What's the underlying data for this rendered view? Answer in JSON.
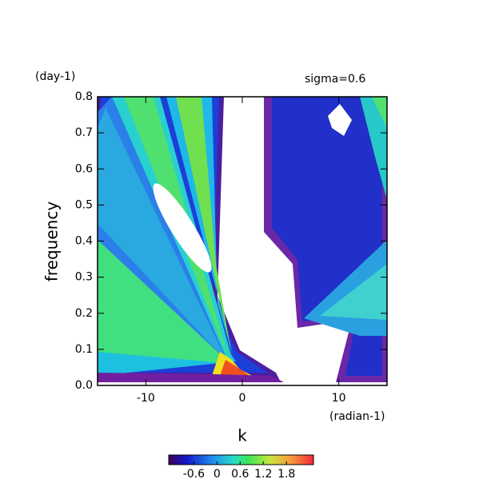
{
  "chart_data": {
    "type": "contour",
    "title": "sigma=0.6",
    "y_unit": "(day-1)",
    "x_unit": "(radian-1)",
    "x_label": "k",
    "y_label": "frequency",
    "xlim": [
      -15,
      15
    ],
    "xticks": [
      -10,
      0,
      10
    ],
    "ylim": [
      0,
      0.8
    ],
    "yticks": [
      {
        "value": 0,
        "label": "0.0"
      },
      0.1,
      0.2,
      0.3,
      0.4,
      0.5,
      0.6,
      0.7,
      0.8
    ],
    "colorbar": {
      "clim": [
        -1.25,
        2.5
      ],
      "ticks": [
        -0.6,
        0,
        0.6,
        1.2,
        1.8
      ]
    }
  }
}
